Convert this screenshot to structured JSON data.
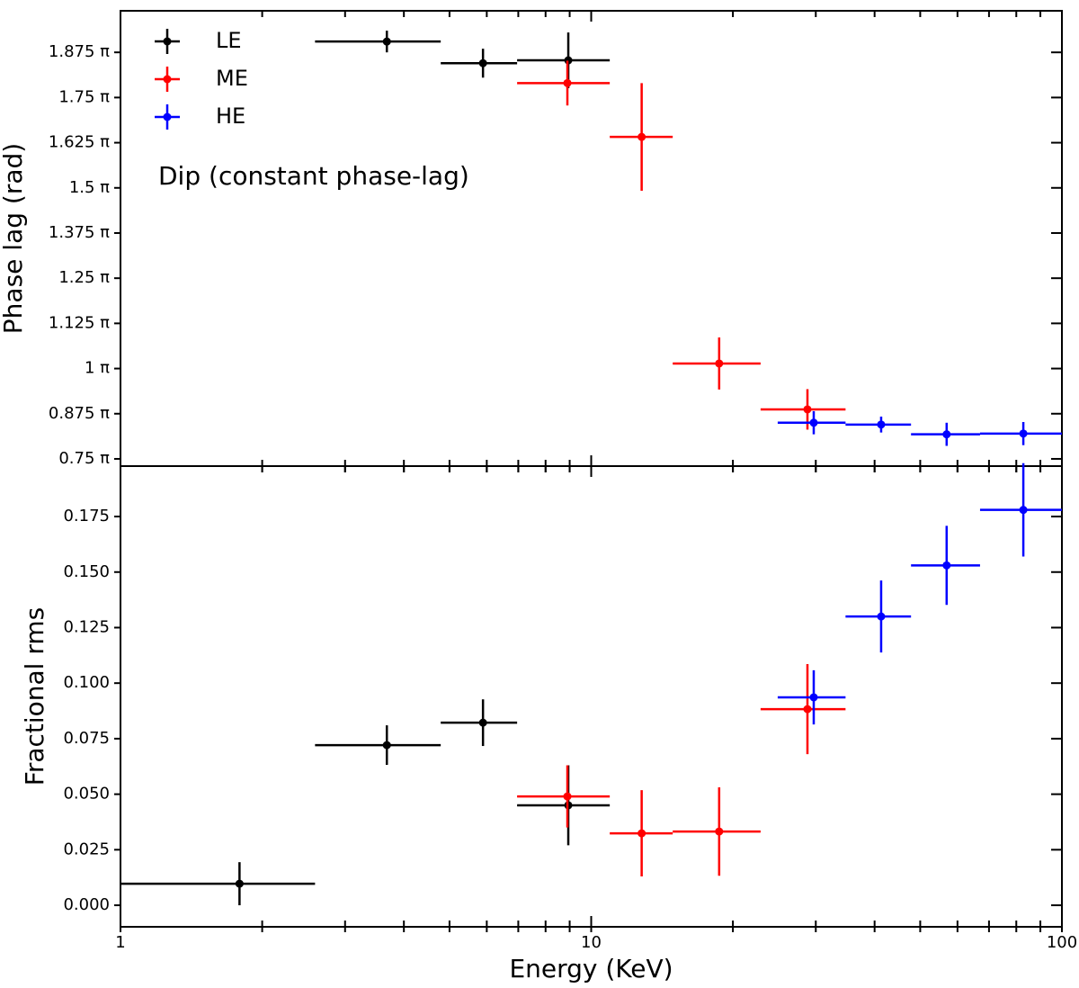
{
  "chart_data": [
    {
      "type": "errorbar",
      "ylabel": "Phase lag (rad)",
      "annotation": "Dip (constant phase-lag)",
      "xscale": "log",
      "xlim": [
        1,
        100
      ],
      "ylim": [
        0.73,
        1.99
      ],
      "yticks": [
        {
          "value": 0.75,
          "label": "0.75 π"
        },
        {
          "value": 0.875,
          "label": "0.875 π"
        },
        {
          "value": 1,
          "label": "1 π"
        },
        {
          "value": 1.125,
          "label": "1.125 π"
        },
        {
          "value": 1.25,
          "label": "1.25 π"
        },
        {
          "value": 1.375,
          "label": "1.375 π"
        },
        {
          "value": 1.5,
          "label": "1.5 π"
        },
        {
          "value": 1.625,
          "label": "1.625 π"
        },
        {
          "value": 1.75,
          "label": "1.75 π"
        },
        {
          "value": 1.875,
          "label": "1.875 π"
        }
      ],
      "legend": "upper left",
      "series": [
        {
          "name": "LE",
          "color": "#000000",
          "x": [
            3.68,
            5.89,
            8.94
          ],
          "x_lo": [
            2.59,
            4.79,
            6.96
          ],
          "x_hi": [
            4.79,
            6.96,
            10.95
          ],
          "values": [
            1.905,
            1.845,
            1.853
          ],
          "yerr": [
            0.03,
            0.04,
            0.077
          ]
        },
        {
          "name": "ME",
          "color": "#ff0000",
          "x": [
            8.9,
            12.8,
            18.7,
            28.8
          ],
          "x_lo": [
            6.96,
            10.95,
            14.9,
            22.9
          ],
          "x_hi": [
            10.95,
            14.9,
            22.9,
            34.7
          ],
          "values": [
            1.79,
            1.641,
            1.014,
            0.887
          ],
          "yerr": [
            0.062,
            0.149,
            0.072,
            0.056
          ]
        },
        {
          "name": "HE",
          "color": "#0000ff",
          "x": [
            29.7,
            41.3,
            56.9,
            82.8
          ],
          "x_lo": [
            24.9,
            34.7,
            47.8,
            67.0
          ],
          "x_hi": [
            34.7,
            47.8,
            67.0,
            100
          ],
          "values": [
            0.85,
            0.845,
            0.818,
            0.82
          ],
          "yerr": [
            0.032,
            0.022,
            0.032,
            0.032
          ]
        }
      ]
    },
    {
      "type": "errorbar",
      "ylabel": "Fractional rms",
      "xlabel": "Energy (KeV)",
      "xscale": "log",
      "xlim": [
        1,
        100
      ],
      "xticks": [
        1,
        10,
        100
      ],
      "xminorticks": [
        2,
        3,
        4,
        5,
        6,
        7,
        8,
        9,
        20,
        30,
        40,
        50,
        60,
        70,
        80,
        90
      ],
      "ylim": [
        -0.0097,
        0.1977
      ],
      "yticks": [
        {
          "value": 0,
          "label": "0.000"
        },
        {
          "value": 0.025,
          "label": "0.025"
        },
        {
          "value": 0.05,
          "label": "0.050"
        },
        {
          "value": 0.075,
          "label": "0.075"
        },
        {
          "value": 0.1,
          "label": "0.100"
        },
        {
          "value": 0.125,
          "label": "0.125"
        },
        {
          "value": 0.15,
          "label": "0.150"
        },
        {
          "value": 0.175,
          "label": "0.175"
        }
      ],
      "series": [
        {
          "color": "#000000",
          "x": [
            1.79,
            3.68,
            5.89,
            8.94
          ],
          "x_lo": [
            1,
            2.59,
            4.79,
            6.96
          ],
          "x_hi": [
            2.59,
            4.79,
            6.96,
            10.95
          ],
          "values": [
            0.0097,
            0.0721,
            0.0822,
            0.045
          ],
          "yerr": [
            0.0097,
            0.0089,
            0.0105,
            0.018
          ]
        },
        {
          "color": "#ff0000",
          "x": [
            8.9,
            12.8,
            18.7,
            28.8
          ],
          "x_lo": [
            6.96,
            10.95,
            14.9,
            22.9
          ],
          "x_hi": [
            10.95,
            14.9,
            22.9,
            34.7
          ],
          "values": [
            0.049,
            0.0324,
            0.0332,
            0.0883
          ],
          "yerr": [
            0.014,
            0.0194,
            0.0199,
            0.0203
          ]
        },
        {
          "color": "#0000ff",
          "x": [
            29.7,
            41.3,
            56.9,
            82.8
          ],
          "x_lo": [
            24.9,
            34.7,
            47.8,
            67.0
          ],
          "x_hi": [
            34.7,
            47.8,
            67.0,
            100
          ],
          "values": [
            0.0936,
            0.13,
            0.153,
            0.178
          ],
          "yerr": [
            0.0122,
            0.0162,
            0.0178,
            0.021
          ]
        }
      ]
    }
  ]
}
